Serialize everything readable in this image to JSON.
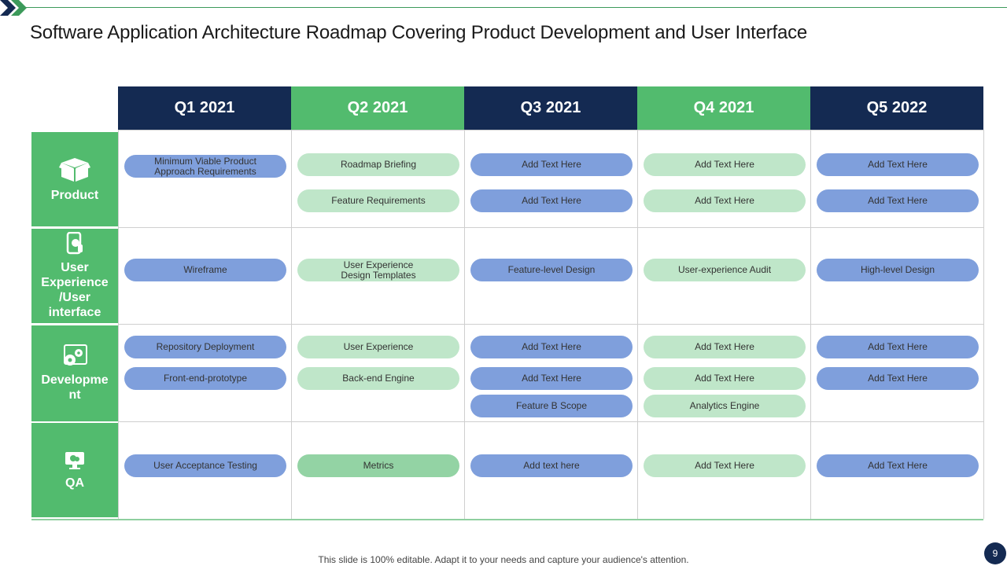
{
  "title": "Software Application Architecture Roadmap Covering Product Development and User Interface",
  "quarters": [
    "Q1 2021",
    "Q2 2021",
    "Q3 2021",
    "Q4 2021",
    "Q5 2022"
  ],
  "rows": [
    {
      "label": "Product",
      "icon": "box-icon",
      "cells": [
        [
          "Minimum Viable Product\nApproach Requirements"
        ],
        [
          "Roadmap Briefing",
          "Feature Requirements"
        ],
        [
          "Add Text Here",
          "Add Text Here"
        ],
        [
          "Add Text Here",
          "Add Text Here"
        ],
        [
          "Add Text Here",
          "Add Text Here"
        ]
      ]
    },
    {
      "label": "User Experience /User interface",
      "icon": "phone-touch-icon",
      "cells": [
        [
          "Wireframe"
        ],
        [
          "User Experience\nDesign Templates"
        ],
        [
          "Feature-level Design"
        ],
        [
          "User-experience Audit"
        ],
        [
          "High-level Design"
        ]
      ]
    },
    {
      "label": "Developme nt",
      "icon": "gears-icon",
      "cells": [
        [
          "Repository Deployment",
          "Front-end-prototype"
        ],
        [
          "User Experience",
          "Back-end Engine"
        ],
        [
          "Add Text Here",
          "Add Text Here",
          "Feature B Scope"
        ],
        [
          "Add Text Here",
          "Add Text Here",
          "Analytics Engine"
        ],
        [
          "Add Text Here",
          "Add Text Here"
        ]
      ]
    },
    {
      "label": "QA",
      "icon": "monitor-bug-icon",
      "cells": [
        [
          "User Acceptance Testing"
        ],
        [
          "Metrics"
        ],
        [
          "Add text here"
        ],
        [
          "Add Text Here"
        ],
        [
          "Add Text Here"
        ]
      ]
    }
  ],
  "footer": "This slide is 100% editable. Adapt it to your needs and capture your audience's attention.",
  "page_number": "9",
  "colors": {
    "navy": "#142a52",
    "green": "#52bb6e",
    "pill_blue": "#7f9fdc",
    "pill_light_green": "#bfe6c9",
    "pill_mid_green": "#93d3a4"
  }
}
